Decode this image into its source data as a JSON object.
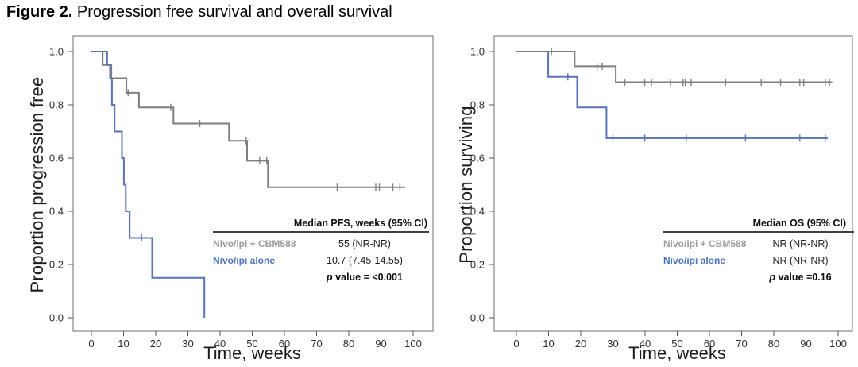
{
  "figure": {
    "label": "Figure 2.",
    "title": " Progression free survival and overall survival"
  },
  "chart_data": [
    {
      "type": "line",
      "subtype": "kaplan_meier_step",
      "id": "pfs",
      "xlabel": "Time, weeks",
      "ylabel": "Proportion progression free",
      "xlim": [
        0,
        100
      ],
      "ylim": [
        0.0,
        1.0
      ],
      "grid": false,
      "xticks": [
        {
          "v": 0,
          "label": "0"
        },
        {
          "v": 10,
          "label": "10"
        },
        {
          "v": 20,
          "label": "20"
        },
        {
          "v": 30,
          "label": "30"
        },
        {
          "v": 40,
          "label": "40"
        },
        {
          "v": 50,
          "label": "50"
        },
        {
          "v": 60,
          "label": "60"
        },
        {
          "v": 70,
          "label": "70"
        },
        {
          "v": 80,
          "label": "80"
        },
        {
          "v": 90,
          "label": "90"
        },
        {
          "v": 100,
          "label": "100"
        }
      ],
      "yticks": [
        {
          "v": 0.0,
          "label": "0.0"
        },
        {
          "v": 0.2,
          "label": "0.2"
        },
        {
          "v": 0.4,
          "label": "0.4"
        },
        {
          "v": 0.6,
          "label": "0.6"
        },
        {
          "v": 0.8,
          "label": "0.8"
        },
        {
          "v": 1.0,
          "label": "1.0"
        }
      ],
      "series": [
        {
          "name": "Nivo/ipi + CBM588",
          "slug": "nivo-ipi-cbm588",
          "color": "#7f7f7f",
          "steps": [
            [
              0,
              1.0
            ],
            [
              3.5,
              0.95
            ],
            [
              6.2,
              0.9
            ],
            [
              10.9,
              0.845
            ],
            [
              14.8,
              0.79
            ],
            [
              25.5,
              0.73
            ],
            [
              42.8,
              0.665
            ],
            [
              48.4,
              0.59
            ],
            [
              54.9,
              0.49
            ],
            [
              97.5,
              0.49
            ]
          ],
          "censors": [
            [
              11.4,
              0.845
            ],
            [
              24.7,
              0.79
            ],
            [
              33.7,
              0.73
            ],
            [
              48.1,
              0.665
            ],
            [
              52.3,
              0.59
            ],
            [
              54.5,
              0.59
            ],
            [
              76.4,
              0.49
            ],
            [
              88.4,
              0.49
            ],
            [
              89.5,
              0.49
            ],
            [
              93.7,
              0.49
            ],
            [
              95.9,
              0.49
            ]
          ]
        },
        {
          "name": "Nivo/ipi alone",
          "slug": "nivo-ipi-alone",
          "color": "#5a73b8",
          "steps": [
            [
              0,
              1.0
            ],
            [
              4.9,
              0.95
            ],
            [
              5.8,
              0.9
            ],
            [
              6.4,
              0.8
            ],
            [
              7.2,
              0.7
            ],
            [
              9.5,
              0.6
            ],
            [
              10.1,
              0.5
            ],
            [
              10.7,
              0.4
            ],
            [
              11.9,
              0.3
            ],
            [
              18.9,
              0.15
            ],
            [
              35.1,
              0.0
            ]
          ],
          "censors": [
            [
              15.6,
              0.3
            ]
          ]
        }
      ],
      "legend": {
        "header": "Median PFS, weeks (95% CI)",
        "rows": [
          {
            "label": "Nivo/ipi + CBM588",
            "value": "55 (NR-NR)",
            "color": "#9c9c9c"
          },
          {
            "label": "Nivo/ipi alone",
            "value": "10.7 (7.45-14.55)",
            "color": "#4b73c0"
          }
        ],
        "p_italic": "p",
        "p_text": " value = <0.001"
      }
    },
    {
      "type": "line",
      "subtype": "kaplan_meier_step",
      "id": "os",
      "xlabel": "Time, weeks",
      "ylabel": "Proportion surviving",
      "xlim": [
        0,
        100
      ],
      "ylim": [
        0.0,
        1.0
      ],
      "grid": false,
      "xticks": [
        {
          "v": 0,
          "label": "0"
        },
        {
          "v": 10,
          "label": "10"
        },
        {
          "v": 20,
          "label": "20"
        },
        {
          "v": 30,
          "label": "30"
        },
        {
          "v": 40,
          "label": "40"
        },
        {
          "v": 50,
          "label": "50"
        },
        {
          "v": 60,
          "label": "60"
        },
        {
          "v": 70,
          "label": "70"
        },
        {
          "v": 80,
          "label": "80"
        },
        {
          "v": 90,
          "label": "90"
        },
        {
          "v": 100,
          "label": "100"
        }
      ],
      "yticks": [
        {
          "v": 0.0,
          "label": "0.0"
        },
        {
          "v": 0.2,
          "label": "0.2"
        },
        {
          "v": 0.4,
          "label": "0.4"
        },
        {
          "v": 0.6,
          "label": "0.6"
        },
        {
          "v": 0.8,
          "label": "0.8"
        },
        {
          "v": 1.0,
          "label": "1.0"
        }
      ],
      "series": [
        {
          "name": "Nivo/ipi + CBM588",
          "slug": "nivo-ipi-cbm588",
          "color": "#7f7f7f",
          "steps": [
            [
              0,
              1.0
            ],
            [
              18.1,
              0.945
            ],
            [
              30.9,
              0.885
            ],
            [
              98,
              0.885
            ]
          ],
          "censors": [
            [
              10.9,
              1.0
            ],
            [
              25.1,
              0.945
            ],
            [
              26.7,
              0.945
            ],
            [
              33.7,
              0.885
            ],
            [
              39.9,
              0.885
            ],
            [
              42.0,
              0.885
            ],
            [
              47.9,
              0.885
            ],
            [
              51.8,
              0.885
            ],
            [
              52.5,
              0.885
            ],
            [
              54.3,
              0.885
            ],
            [
              65.0,
              0.885
            ],
            [
              76.1,
              0.885
            ],
            [
              82.1,
              0.885
            ],
            [
              88.1,
              0.885
            ],
            [
              89.3,
              0.885
            ],
            [
              96.0,
              0.885
            ],
            [
              97.3,
              0.885
            ]
          ]
        },
        {
          "name": "Nivo/ipi alone",
          "slug": "nivo-ipi-alone",
          "color": "#5a73b8",
          "steps": [
            [
              0,
              1.0
            ],
            [
              9.9,
              0.905
            ],
            [
              18.9,
              0.79
            ],
            [
              28.0,
              0.675
            ],
            [
              96.7,
              0.675
            ]
          ],
          "censors": [
            [
              16.0,
              0.905
            ],
            [
              30.0,
              0.675
            ],
            [
              39.9,
              0.675
            ],
            [
              52.8,
              0.675
            ],
            [
              71.2,
              0.675
            ],
            [
              88.1,
              0.675
            ],
            [
              96.0,
              0.675
            ]
          ]
        }
      ],
      "legend": {
        "header": "Median OS (95% CI)",
        "rows": [
          {
            "label": "Nivo/ipi + CBM588",
            "value": "NR (NR-NR)",
            "color": "#9c9c9c"
          },
          {
            "label": "Nivo/ipi alone",
            "value": "NR (NR-NR)",
            "color": "#4b73c0"
          }
        ],
        "p_italic": "p",
        "p_text": " value =0.16"
      }
    }
  ]
}
